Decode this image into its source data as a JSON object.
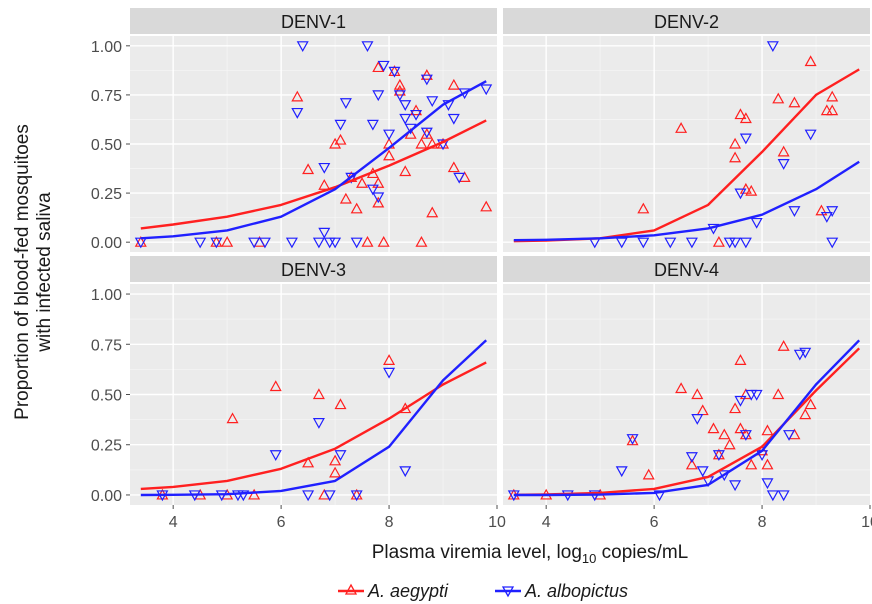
{
  "chart_data": {
    "type": "scatter",
    "ylabel_line1": "Proportion of blood-fed mosquitoes",
    "ylabel_line2": "with infected saliva",
    "xlabel_main": "Plasma viremia level, log",
    "xlabel_sub": "10",
    "xlabel_rest": " copies/mL",
    "xlim": [
      3.2,
      10
    ],
    "ylim": [
      -0.05,
      1.05
    ],
    "x_ticks": [
      4,
      6,
      8,
      10
    ],
    "x_tick_labels": [
      "4",
      "6",
      "8",
      "10"
    ],
    "y_ticks": [
      0,
      0.25,
      0.5,
      0.75,
      1.0
    ],
    "y_tick_labels": [
      "0.00",
      "0.25",
      "0.50",
      "0.75",
      "1.00"
    ],
    "colors": {
      "aegypti": "#ff2020",
      "albopictus": "#2020ff",
      "panel_bg": "#ebebeb",
      "grid": "#ffffff",
      "strip_bg": "#d9d9d9"
    },
    "legend": {
      "position": "bottom",
      "entries": [
        {
          "label": "A. aegypti",
          "color": "#ff2020",
          "marker": "triangle-up"
        },
        {
          "label": "A. albopictus",
          "color": "#2020ff",
          "marker": "triangle-down"
        }
      ]
    },
    "panels": [
      {
        "title": "DENV-1",
        "fit": {
          "aegypti": {
            "x": [
              3.4,
              4,
              5,
              6,
              7,
              8,
              9,
              9.8
            ],
            "y": [
              0.07,
              0.09,
              0.13,
              0.19,
              0.28,
              0.39,
              0.51,
              0.62
            ]
          },
          "albopictus": {
            "x": [
              3.4,
              4,
              5,
              6,
              7,
              8,
              9,
              9.8
            ],
            "y": [
              0.02,
              0.03,
              0.06,
              0.13,
              0.27,
              0.48,
              0.7,
              0.82
            ]
          }
        },
        "aegypti": [
          [
            3.4,
            0
          ],
          [
            4.8,
            0
          ],
          [
            5.0,
            0
          ],
          [
            5.6,
            0
          ],
          [
            6.3,
            0.74
          ],
          [
            6.5,
            0.37
          ],
          [
            6.8,
            0.29
          ],
          [
            7.0,
            0.5
          ],
          [
            7.1,
            0.52
          ],
          [
            7.2,
            0.22
          ],
          [
            7.3,
            0.33
          ],
          [
            7.4,
            0.17
          ],
          [
            7.5,
            0.3
          ],
          [
            7.6,
            0
          ],
          [
            7.7,
            0.35
          ],
          [
            7.8,
            0.89
          ],
          [
            7.8,
            0.3
          ],
          [
            7.8,
            0.2
          ],
          [
            7.9,
            0
          ],
          [
            8.0,
            0.5
          ],
          [
            8.0,
            0.44
          ],
          [
            8.1,
            0.87
          ],
          [
            8.2,
            0.8
          ],
          [
            8.2,
            0.77
          ],
          [
            8.3,
            0.36
          ],
          [
            8.4,
            0.55
          ],
          [
            8.5,
            0.67
          ],
          [
            8.6,
            0
          ],
          [
            8.6,
            0.5
          ],
          [
            8.7,
            0.85
          ],
          [
            8.7,
            0.55
          ],
          [
            8.8,
            0.5
          ],
          [
            8.8,
            0.15
          ],
          [
            9.0,
            0.5
          ],
          [
            9.2,
            0.8
          ],
          [
            9.2,
            0.38
          ],
          [
            9.4,
            0.33
          ],
          [
            9.8,
            0.18
          ]
        ],
        "albopictus": [
          [
            3.4,
            0
          ],
          [
            4.5,
            0
          ],
          [
            4.8,
            0
          ],
          [
            5.5,
            0
          ],
          [
            5.7,
            0
          ],
          [
            6.2,
            0
          ],
          [
            6.3,
            0.66
          ],
          [
            6.7,
            0
          ],
          [
            6.8,
            0.38
          ],
          [
            6.8,
            0.05
          ],
          [
            6.9,
            0
          ],
          [
            7.0,
            0
          ],
          [
            7.1,
            0.6
          ],
          [
            7.2,
            0.71
          ],
          [
            7.3,
            0.33
          ],
          [
            7.4,
            0
          ],
          [
            7.6,
            1.0
          ],
          [
            7.7,
            0.27
          ],
          [
            7.7,
            0.6
          ],
          [
            7.8,
            0.75
          ],
          [
            7.8,
            0.23
          ],
          [
            7.9,
            0.9
          ],
          [
            8.0,
            0.55
          ],
          [
            8.1,
            0.87
          ],
          [
            8.2,
            0.75
          ],
          [
            8.3,
            0.7
          ],
          [
            8.3,
            0.63
          ],
          [
            8.4,
            0.58
          ],
          [
            8.5,
            0.65
          ],
          [
            8.7,
            0.83
          ],
          [
            8.7,
            0.56
          ],
          [
            8.8,
            0.72
          ],
          [
            9.0,
            0.5
          ],
          [
            9.1,
            0.7
          ],
          [
            9.2,
            0.63
          ],
          [
            9.3,
            0.33
          ],
          [
            9.4,
            0.76
          ],
          [
            9.8,
            0.78
          ],
          [
            6.4,
            1.0
          ]
        ]
      },
      {
        "title": "DENV-2",
        "fit": {
          "aegypti": {
            "x": [
              3.4,
              4,
              5,
              6,
              7,
              8,
              9,
              9.8
            ],
            "y": [
              0.005,
              0.008,
              0.02,
              0.06,
              0.19,
              0.46,
              0.75,
              0.88
            ]
          },
          "albopictus": {
            "x": [
              3.4,
              4,
              5,
              6,
              7,
              8,
              9,
              9.8
            ],
            "y": [
              0.01,
              0.012,
              0.02,
              0.035,
              0.07,
              0.14,
              0.27,
              0.41
            ]
          }
        },
        "aegypti": [
          [
            5.8,
            0.17
          ],
          [
            6.5,
            0.58
          ],
          [
            7.2,
            0.0
          ],
          [
            7.5,
            0.5
          ],
          [
            7.6,
            0.65
          ],
          [
            7.7,
            0.63
          ],
          [
            7.7,
            0.27
          ],
          [
            7.8,
            0.26
          ],
          [
            7.5,
            0.43
          ],
          [
            8.3,
            0.73
          ],
          [
            8.4,
            0.46
          ],
          [
            8.6,
            0.71
          ],
          [
            8.9,
            0.92
          ],
          [
            9.3,
            0.74
          ],
          [
            9.2,
            0.67
          ],
          [
            9.3,
            0.67
          ],
          [
            9.1,
            0.16
          ]
        ],
        "albopictus": [
          [
            4.9,
            0
          ],
          [
            5.4,
            0
          ],
          [
            5.8,
            0
          ],
          [
            6.3,
            0
          ],
          [
            6.7,
            0
          ],
          [
            7.1,
            0.07
          ],
          [
            7.4,
            0
          ],
          [
            7.5,
            0
          ],
          [
            7.6,
            0.25
          ],
          [
            7.7,
            0.53
          ],
          [
            7.7,
            0
          ],
          [
            7.9,
            0.1
          ],
          [
            8.2,
            1.0
          ],
          [
            8.4,
            0.4
          ],
          [
            8.6,
            0.16
          ],
          [
            8.9,
            0.55
          ],
          [
            9.2,
            0.13
          ],
          [
            9.3,
            0.16
          ],
          [
            9.3,
            0
          ]
        ]
      },
      {
        "title": "DENV-3",
        "fit": {
          "aegypti": {
            "x": [
              3.4,
              4,
              5,
              6,
              7,
              8,
              9,
              9.8
            ],
            "y": [
              0.03,
              0.04,
              0.07,
              0.13,
              0.23,
              0.38,
              0.55,
              0.66
            ]
          },
          "albopictus": {
            "x": [
              3.4,
              4,
              5,
              6,
              7,
              8,
              9,
              9.8
            ],
            "y": [
              0.0,
              0.001,
              0.004,
              0.02,
              0.07,
              0.24,
              0.57,
              0.77
            ]
          }
        },
        "aegypti": [
          [
            3.8,
            0
          ],
          [
            4.5,
            0
          ],
          [
            5.0,
            0
          ],
          [
            5.1,
            0.38
          ],
          [
            5.5,
            0
          ],
          [
            5.9,
            0.54
          ],
          [
            6.5,
            0.16
          ],
          [
            6.7,
            0.5
          ],
          [
            6.8,
            0
          ],
          [
            7.1,
            0.45
          ],
          [
            7.0,
            0.17
          ],
          [
            7.0,
            0.11
          ],
          [
            7.4,
            0
          ],
          [
            8.0,
            0.67
          ],
          [
            8.3,
            0.43
          ]
        ],
        "albopictus": [
          [
            3.8,
            0
          ],
          [
            4.4,
            0
          ],
          [
            4.9,
            0
          ],
          [
            5.2,
            0
          ],
          [
            5.3,
            0
          ],
          [
            5.9,
            0.2
          ],
          [
            6.5,
            0
          ],
          [
            6.7,
            0.36
          ],
          [
            6.9,
            0
          ],
          [
            7.1,
            0.2
          ],
          [
            7.4,
            0
          ],
          [
            8.0,
            0.61
          ],
          [
            8.3,
            0.12
          ]
        ]
      },
      {
        "title": "DENV-4",
        "fit": {
          "aegypti": {
            "x": [
              3.4,
              4,
              5,
              6,
              7,
              8,
              9,
              9.8
            ],
            "y": [
              0.001,
              0.003,
              0.01,
              0.03,
              0.09,
              0.24,
              0.52,
              0.73
            ]
          },
          "albopictus": {
            "x": [
              3.4,
              4,
              5,
              6,
              7,
              8,
              9,
              9.8
            ],
            "y": [
              0.0,
              0.0,
              0.002,
              0.01,
              0.05,
              0.22,
              0.55,
              0.77
            ]
          }
        },
        "aegypti": [
          [
            3.4,
            0
          ],
          [
            4.0,
            0
          ],
          [
            5.0,
            0
          ],
          [
            5.6,
            0.27
          ],
          [
            5.9,
            0.1
          ],
          [
            6.5,
            0.53
          ],
          [
            6.7,
            0.15
          ],
          [
            6.8,
            0.5
          ],
          [
            6.9,
            0.42
          ],
          [
            7.1,
            0.33
          ],
          [
            7.2,
            0.2
          ],
          [
            7.3,
            0.3
          ],
          [
            7.4,
            0.25
          ],
          [
            7.5,
            0.43
          ],
          [
            7.6,
            0.67
          ],
          [
            7.6,
            0.33
          ],
          [
            7.7,
            0.5
          ],
          [
            7.7,
            0.3
          ],
          [
            7.8,
            0.15
          ],
          [
            8.0,
            0.22
          ],
          [
            8.1,
            0.32
          ],
          [
            8.1,
            0.15
          ],
          [
            8.3,
            0.5
          ],
          [
            8.4,
            0.74
          ],
          [
            8.6,
            0.3
          ],
          [
            8.8,
            0.4
          ],
          [
            8.9,
            0.45
          ]
        ],
        "albopictus": [
          [
            3.4,
            0
          ],
          [
            4.4,
            0
          ],
          [
            4.9,
            0
          ],
          [
            5.4,
            0.12
          ],
          [
            5.6,
            0.28
          ],
          [
            6.1,
            0
          ],
          [
            6.7,
            0.19
          ],
          [
            6.8,
            0.38
          ],
          [
            6.9,
            0.12
          ],
          [
            7.0,
            0.07
          ],
          [
            7.2,
            0.2
          ],
          [
            7.3,
            0.1
          ],
          [
            7.5,
            0.05
          ],
          [
            7.6,
            0.47
          ],
          [
            7.7,
            0.3
          ],
          [
            7.8,
            0.5
          ],
          [
            7.9,
            0.5
          ],
          [
            8.0,
            0.2
          ],
          [
            8.1,
            0.06
          ],
          [
            8.2,
            0
          ],
          [
            8.4,
            0
          ],
          [
            8.5,
            0.3
          ],
          [
            8.7,
            0.7
          ],
          [
            8.8,
            0.71
          ]
        ]
      }
    ]
  }
}
